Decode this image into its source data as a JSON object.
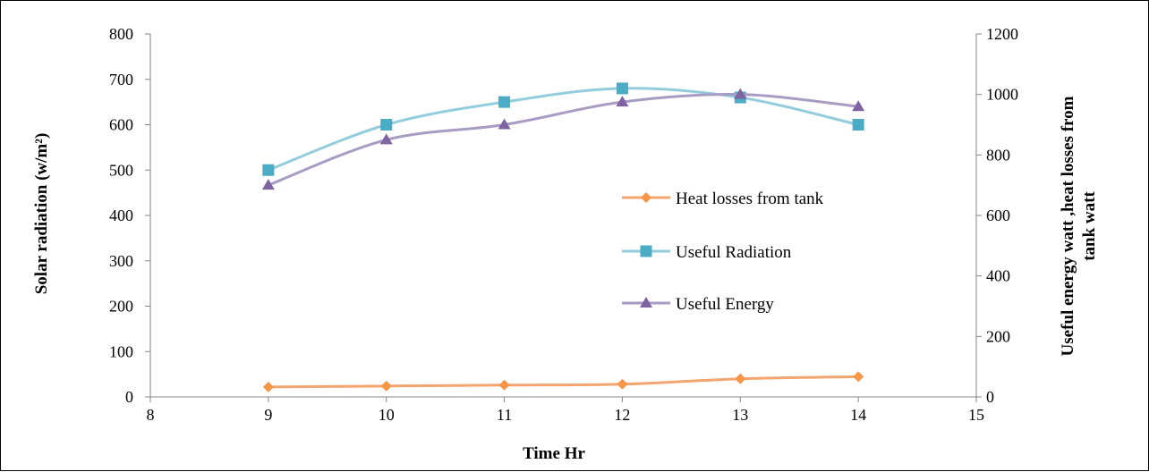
{
  "chart_data": {
    "type": "line",
    "title": "",
    "xlabel": "Time Hr",
    "ylabel": "Solar radiation (w/m²)",
    "y2label": "Useful energy watt ,heat losses from tank watt",
    "xlim": [
      8,
      15
    ],
    "ylim": [
      0,
      800
    ],
    "y2lim": [
      0,
      1200
    ],
    "xticks": [
      "8",
      "9",
      "10",
      "11",
      "12",
      "13",
      "14",
      "15"
    ],
    "yticks": [
      "0",
      "100",
      "200",
      "300",
      "400",
      "500",
      "600",
      "700",
      "800"
    ],
    "y2ticks": [
      "0",
      "200",
      "400",
      "600",
      "800",
      "1000",
      "1200"
    ],
    "grid": false,
    "legend_position": "center-right",
    "x": [
      9,
      10,
      11,
      12,
      13,
      14
    ],
    "series": [
      {
        "name": "Heat losses from tank",
        "axis": "right",
        "marker": "diamond",
        "color": "#f4a46e",
        "marker_color": "#f79646",
        "values": [
          33,
          36,
          39,
          42,
          60,
          67
        ]
      },
      {
        "name": "Useful Radiation",
        "axis": "left",
        "marker": "square",
        "color": "#93cddd",
        "marker_color": "#4bacc6",
        "values": [
          500,
          600,
          650,
          680,
          660,
          600
        ]
      },
      {
        "name": "Useful Energy",
        "axis": "right",
        "marker": "triangle",
        "color": "#a89bc4",
        "marker_color": "#8064a2",
        "values": [
          700,
          850,
          900,
          975,
          1000,
          960
        ]
      }
    ]
  }
}
